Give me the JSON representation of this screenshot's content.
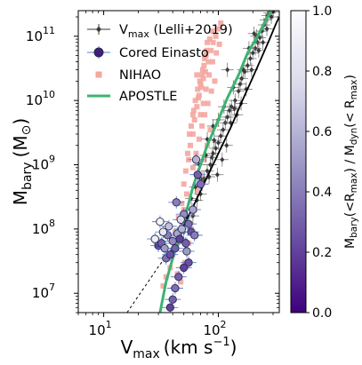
{
  "chart_data": {
    "type": "scatter",
    "xlabel": {
      "main": "V",
      "sub": "max",
      "unit": "(km s",
      "exp": "−1",
      "close": ")"
    },
    "ylabel": {
      "main": "M",
      "sub": "bary",
      "unit_open": "(M",
      "unit_symbol": "⊙",
      "close": ")"
    },
    "xscale": "log",
    "yscale": "log",
    "xlim": [
      6,
      340
    ],
    "ylim": [
      5000000,
      250000000000
    ],
    "x_ticks": [
      {
        "value": 10,
        "label": "10",
        "exp": "1"
      },
      {
        "value": 100,
        "label": "10",
        "exp": "2"
      }
    ],
    "y_ticks": [
      {
        "value": 10000000,
        "label": "10",
        "exp": "7"
      },
      {
        "value": 100000000,
        "label": "10",
        "exp": "8"
      },
      {
        "value": 1000000000,
        "label": "10",
        "exp": "9"
      },
      {
        "value": 10000000000,
        "label": "10",
        "exp": "10"
      },
      {
        "value": 100000000000,
        "label": "10",
        "exp": "11"
      }
    ],
    "legend": {
      "position": "top-left",
      "entries": [
        {
          "key": "lelli",
          "main": "V",
          "sub": "max",
          "rest": " (Lelli+2019)"
        },
        {
          "key": "cored",
          "text": "Cored Einasto"
        },
        {
          "key": "nihao",
          "text": "NIHAO"
        },
        {
          "key": "apostle",
          "text": "APOSTLE"
        }
      ]
    },
    "colorbar": {
      "range": [
        0,
        1
      ],
      "ticks": [
        "0.0",
        "0.2",
        "0.4",
        "0.6",
        "0.8",
        "1.0"
      ],
      "label": {
        "a": "M",
        "a_sub": "bary",
        "b": "(<R",
        "b_sub": "max",
        "c": ") / M",
        "c_sub": "dyn",
        "d": "(< R",
        "d_sub": "max",
        "e": ")"
      },
      "colormap": "Purples_r"
    },
    "colors": {
      "lelli": "#3a3a3a",
      "nihao": "#f4a6a0",
      "apostle": "#3cb371",
      "fit": "#000000",
      "cored_edge": "#2a2a4a",
      "cored_err": "#5a7fd6"
    },
    "series": [
      {
        "name": "V_max (Lelli+2019)",
        "marker": "diamond",
        "points": [
          [
            40,
            50000000.0
          ],
          [
            45,
            70000000.0
          ],
          [
            50,
            90000000.0
          ],
          [
            55,
            120000000.0
          ],
          [
            60,
            160000000.0
          ],
          [
            62,
            200000000.0
          ],
          [
            65,
            280000000.0
          ],
          [
            70,
            350000000.0
          ],
          [
            72,
            500000000.0
          ],
          [
            75,
            600000000.0
          ],
          [
            80,
            800000000.0
          ],
          [
            85,
            1000000000.0
          ],
          [
            88,
            1300000000.0
          ],
          [
            90,
            1500000000.0
          ],
          [
            95,
            1800000000.0
          ],
          [
            100,
            2200000000.0
          ],
          [
            105,
            2800000000.0
          ],
          [
            110,
            3500000000.0
          ],
          [
            115,
            4500000000.0
          ],
          [
            120,
            5500000000.0
          ],
          [
            125,
            7000000000.0
          ],
          [
            130,
            8000000000.0
          ],
          [
            140,
            10000000000.0
          ],
          [
            150,
            14000000000.0
          ],
          [
            155,
            18000000000.0
          ],
          [
            160,
            22000000000.0
          ],
          [
            170,
            28000000000.0
          ],
          [
            180,
            35000000000.0
          ],
          [
            190,
            45000000000.0
          ],
          [
            200,
            55000000000.0
          ],
          [
            210,
            65000000000.0
          ],
          [
            220,
            80000000000.0
          ],
          [
            230,
            95000000000.0
          ],
          [
            240,
            120000000000.0
          ],
          [
            250,
            150000000000.0
          ],
          [
            260,
            180000000000.0
          ],
          [
            270,
            210000000000.0
          ],
          [
            280,
            230000000000.0
          ],
          [
            300,
            240000000000.0
          ],
          [
            68,
            1000000000.0
          ],
          [
            78,
            1400000000.0
          ],
          [
            92,
            2400000000.0
          ],
          [
            108,
            1200000000.0
          ],
          [
            118,
            2000000000.0
          ],
          [
            135,
            16000000000.0
          ],
          [
            145,
            6000000000.0
          ],
          [
            165,
            30000000000.0
          ],
          [
            175,
            15000000000.0
          ],
          [
            195,
            30000000000.0
          ],
          [
            215,
            100000000000.0
          ],
          [
            225,
            60000000000.0
          ],
          [
            245,
            80000000000.0
          ],
          [
            58,
            300000000.0
          ],
          [
            52,
            150000000.0
          ],
          [
            63,
            450000000.0
          ],
          [
            83,
            650000000.0
          ],
          [
            98,
            700000000.0
          ],
          [
            112,
            8000000000.0
          ],
          [
            128,
            4500000000.0
          ],
          [
            138,
            7500000000.0
          ],
          [
            158,
            9000000000.0
          ],
          [
            185,
            65000000000.0
          ],
          [
            205,
            110000000000.0
          ],
          [
            265,
            130000000000.0
          ],
          [
            290,
            200000000000.0
          ],
          [
            100,
            5000000000.0
          ],
          [
            120,
            30000000000.0
          ],
          [
            80,
            2500000000.0
          ],
          [
            70,
            600000000.0
          ],
          [
            90,
            4000000000.0
          ]
        ]
      },
      {
        "name": "Cored Einasto",
        "marker": "circle",
        "points": [
          [
            28,
            70000000.0,
            0.9
          ],
          [
            30,
            55000000.0,
            0.2
          ],
          [
            32,
            60000000.0,
            0.3
          ],
          [
            34,
            50000000.0,
            0.5
          ],
          [
            35,
            35000000.0,
            0.35
          ],
          [
            36,
            80000000.0,
            0.4
          ],
          [
            37,
            110000000.0,
            0.65
          ],
          [
            38,
            40000000.0,
            0.25
          ],
          [
            40,
            65000000.0,
            0.45
          ],
          [
            42,
            50000000.0,
            0.3
          ],
          [
            44,
            85000000.0,
            0.55
          ],
          [
            46,
            70000000.0,
            0.2
          ],
          [
            48,
            100000000.0,
            0.6
          ],
          [
            50,
            170000000.0,
            0.45
          ],
          [
            52,
            60000000.0,
            0.3
          ],
          [
            55,
            120000000.0,
            0.35
          ],
          [
            58,
            90000000.0,
            0.25
          ],
          [
            60,
            200000000.0,
            0.55
          ],
          [
            62,
            80000000.0,
            0.4
          ],
          [
            64,
            1200000000.0,
            0.6
          ],
          [
            66,
            700000000.0,
            0.3
          ],
          [
            70,
            500000000.0,
            0.35
          ],
          [
            55,
            30000000.0,
            0.25
          ],
          [
            50,
            25000000.0,
            0.2
          ],
          [
            45,
            18000000.0,
            0.3
          ],
          [
            42,
            12000000.0,
            0.35
          ],
          [
            40,
            8000000.0,
            0.3
          ],
          [
            38,
            6000000.0,
            0.2
          ],
          [
            53,
            45000000.0,
            0.5
          ],
          [
            47,
            140000000.0,
            0.75
          ],
          [
            43,
            260000000.0,
            0.4
          ],
          [
            33,
            90000000.0,
            0.85
          ],
          [
            31,
            130000000.0,
            0.95
          ]
        ]
      },
      {
        "name": "NIHAO",
        "marker": "square",
        "points": [
          [
            45,
            150000000.0
          ],
          [
            48,
            250000000.0
          ],
          [
            50,
            500000000.0
          ],
          [
            52,
            800000000.0
          ],
          [
            55,
            1200000000.0
          ],
          [
            57,
            2000000000.0
          ],
          [
            60,
            3000000000.0
          ],
          [
            62,
            5000000000.0
          ],
          [
            65,
            8000000000.0
          ],
          [
            68,
            12000000000.0
          ],
          [
            70,
            18000000000.0
          ],
          [
            72,
            25000000000.0
          ],
          [
            75,
            35000000000.0
          ],
          [
            78,
            50000000000.0
          ],
          [
            80,
            80000000000.0
          ],
          [
            58,
            4000000000.0
          ],
          [
            60,
            6000000000.0
          ],
          [
            63,
            10000000000.0
          ],
          [
            66,
            15000000000.0
          ],
          [
            69,
            20000000000.0
          ],
          [
            73,
            30000000000.0
          ],
          [
            76,
            45000000000.0
          ],
          [
            79,
            60000000000.0
          ],
          [
            84,
            90000000000.0
          ],
          [
            88,
            120000000000.0
          ],
          [
            56,
            3000000000.0
          ],
          [
            54,
            1500000000.0
          ],
          [
            61,
            7000000000.0
          ],
          [
            67,
            11000000000.0
          ],
          [
            71,
            16000000000.0
          ],
          [
            74,
            22000000000.0
          ],
          [
            77,
            28000000000.0
          ],
          [
            82,
            40000000000.0
          ],
          [
            86,
            60000000000.0
          ],
          [
            90,
            80000000000.0
          ],
          [
            95,
            100000000000.0
          ],
          [
            100,
            130000000000.0
          ],
          [
            105,
            160000000000.0
          ],
          [
            46,
            80000000.0
          ],
          [
            43,
            60000000.0
          ],
          [
            40,
            40000000.0
          ],
          [
            38,
            25000000.0
          ],
          [
            35,
            18000000.0
          ],
          [
            33,
            13000000.0
          ],
          [
            50,
            200000000.0
          ],
          [
            53,
            350000000.0
          ],
          [
            48,
            120000000.0
          ],
          [
            42,
            90000000.0
          ],
          [
            44,
            20000000.0
          ],
          [
            47,
            15000000.0
          ],
          [
            51,
            30000000.0
          ],
          [
            55,
            60000000.0
          ],
          [
            58,
            100000000.0
          ],
          [
            62,
            200000000.0
          ],
          [
            66,
            400000000.0
          ],
          [
            70,
            700000000.0
          ],
          [
            75,
            1200000000.0
          ],
          [
            80,
            2000000000.0
          ],
          [
            85,
            3500000000.0
          ],
          [
            60,
            900000000.0
          ],
          [
            64,
            1500000000.0
          ],
          [
            68,
            2500000000.0
          ],
          [
            72,
            4000000000.0
          ],
          [
            76,
            6000000000.0
          ],
          [
            81,
            9000000000.0
          ],
          [
            87,
            14000000000.0
          ],
          [
            93,
            20000000000.0
          ],
          [
            65,
            25000000000.0
          ],
          [
            70,
            6000000000.0
          ],
          [
            74,
            9000000000.0
          ],
          [
            78,
            15000000000.0
          ],
          [
            83,
            25000000000.0
          ],
          [
            89,
            40000000000.0
          ],
          [
            96,
            55000000000.0
          ],
          [
            102,
            75000000000.0
          ]
        ]
      },
      {
        "name": "APOSTLE",
        "marker": "line",
        "points": [
          [
            31,
            5000000.0
          ],
          [
            35,
            15000000.0
          ],
          [
            40,
            35000000.0
          ],
          [
            45,
            70000000.0
          ],
          [
            50,
            130000000.0
          ],
          [
            55,
            250000000.0
          ],
          [
            60,
            450000000.0
          ],
          [
            70,
            1000000000.0
          ],
          [
            80,
            2000000000.0
          ],
          [
            100,
            5000000000.0
          ],
          [
            120,
            11000000000.0
          ],
          [
            150,
            25000000000.0
          ],
          [
            180,
            55000000000.0
          ],
          [
            220,
            100000000000.0
          ],
          [
            260,
            180000000000.0
          ],
          [
            290,
            250000000000.0
          ]
        ]
      },
      {
        "name": "fit",
        "marker": "line",
        "points": [
          [
            40,
            50000000.0
          ],
          [
            60,
            220000000.0
          ],
          [
            80,
            650000000.0
          ],
          [
            100,
            1500000000.0
          ],
          [
            130,
            4000000000.0
          ],
          [
            160,
            9500000000.0
          ],
          [
            200,
            23000000000.0
          ],
          [
            240,
            48000000000.0
          ],
          [
            280,
            90000000000.0
          ],
          [
            320,
            160000000000.0
          ],
          [
            340,
            200000000000.0
          ]
        ]
      },
      {
        "name": "fit-extrapolation",
        "marker": "dashed-line",
        "points": [
          [
            16,
            5000000.0
          ],
          [
            20,
            9000000.0
          ],
          [
            25,
            16000000.0
          ],
          [
            30,
            26000000.0
          ],
          [
            35,
            37000000.0
          ],
          [
            40,
            50000000.0
          ]
        ]
      }
    ]
  }
}
